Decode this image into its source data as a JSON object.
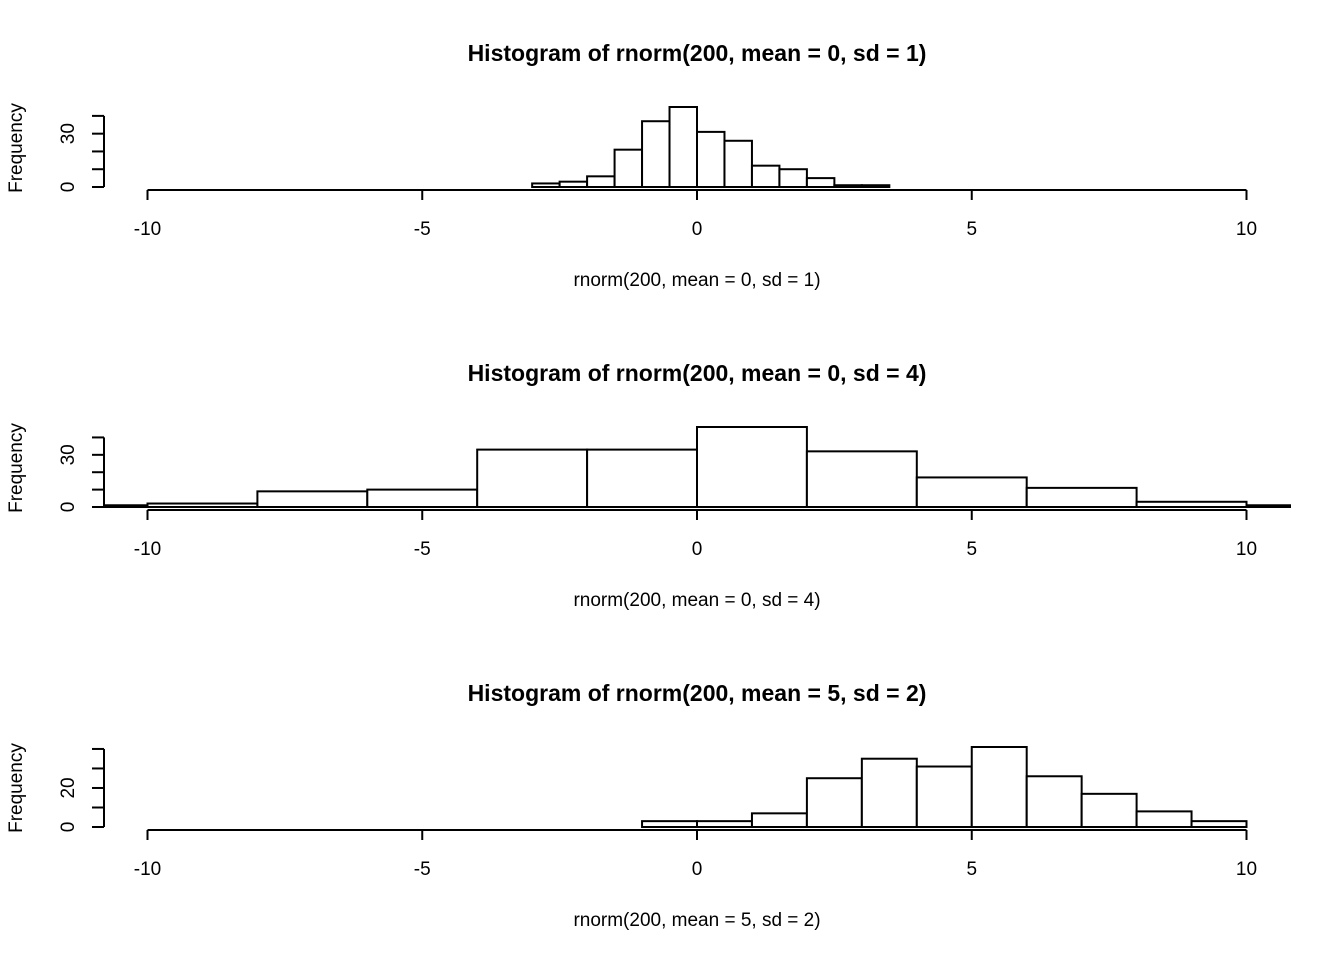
{
  "chart_data": [
    {
      "type": "bar",
      "title": "Histogram of rnorm(200, mean = 0, sd = 1)",
      "xlabel": "rnorm(200, mean = 0, sd = 1)",
      "ylabel": "Frequency",
      "xlim": [
        -10,
        10
      ],
      "ylim": [
        0,
        45
      ],
      "x_ticks": [
        "-10",
        "-5",
        "0",
        "5",
        "10"
      ],
      "y_ticks": [
        "0",
        "30"
      ],
      "y_minor_ticks": [
        0,
        10,
        20,
        30,
        40
      ],
      "bins": [
        {
          "from": -3.0,
          "to": -2.5,
          "count": 2
        },
        {
          "from": -2.5,
          "to": -2.0,
          "count": 3
        },
        {
          "from": -2.0,
          "to": -1.5,
          "count": 6
        },
        {
          "from": -1.5,
          "to": -1.0,
          "count": 21
        },
        {
          "from": -1.0,
          "to": -0.5,
          "count": 37
        },
        {
          "from": -0.5,
          "to": 0.0,
          "count": 45
        },
        {
          "from": 0.0,
          "to": 0.5,
          "count": 31
        },
        {
          "from": 0.5,
          "to": 1.0,
          "count": 26
        },
        {
          "from": 1.0,
          "to": 1.5,
          "count": 12
        },
        {
          "from": 1.5,
          "to": 2.0,
          "count": 10
        },
        {
          "from": 2.0,
          "to": 2.5,
          "count": 5
        },
        {
          "from": 2.5,
          "to": 3.0,
          "count": 1
        },
        {
          "from": 3.0,
          "to": 3.5,
          "count": 1
        }
      ]
    },
    {
      "type": "bar",
      "title": "Histogram of rnorm(200, mean = 0, sd = 4)",
      "xlabel": "rnorm(200, mean = 0, sd = 4)",
      "ylabel": "Frequency",
      "xlim": [
        -10,
        10
      ],
      "ylim": [
        0,
        46
      ],
      "x_ticks": [
        "-10",
        "-5",
        "0",
        "5",
        "10"
      ],
      "y_ticks": [
        "0",
        "30"
      ],
      "y_minor_ticks": [
        0,
        10,
        20,
        30,
        40
      ],
      "bins": [
        {
          "from": -12,
          "to": -10,
          "count": 1
        },
        {
          "from": -10,
          "to": -8,
          "count": 2
        },
        {
          "from": -8,
          "to": -6,
          "count": 9
        },
        {
          "from": -6,
          "to": -4,
          "count": 10
        },
        {
          "from": -4,
          "to": -2,
          "count": 33
        },
        {
          "from": -2,
          "to": 0,
          "count": 33
        },
        {
          "from": 0,
          "to": 2,
          "count": 46
        },
        {
          "from": 2,
          "to": 4,
          "count": 32
        },
        {
          "from": 4,
          "to": 6,
          "count": 17
        },
        {
          "from": 6,
          "to": 8,
          "count": 11
        },
        {
          "from": 8,
          "to": 10,
          "count": 3
        },
        {
          "from": 10,
          "to": 12,
          "count": 1
        }
      ]
    },
    {
      "type": "bar",
      "title": "Histogram of rnorm(200, mean = 5, sd = 2)",
      "xlabel": "rnorm(200, mean = 5, sd = 2)",
      "ylabel": "Frequency",
      "xlim": [
        -10,
        10
      ],
      "ylim": [
        0,
        41
      ],
      "x_ticks": [
        "-10",
        "-5",
        "0",
        "5",
        "10"
      ],
      "y_ticks": [
        "0",
        "20"
      ],
      "y_minor_ticks": [
        0,
        10,
        20,
        30,
        40
      ],
      "bins": [
        {
          "from": -1,
          "to": 0,
          "count": 3
        },
        {
          "from": 0,
          "to": 1,
          "count": 3
        },
        {
          "from": 1,
          "to": 2,
          "count": 7
        },
        {
          "from": 2,
          "to": 3,
          "count": 25
        },
        {
          "from": 3,
          "to": 4,
          "count": 35
        },
        {
          "from": 4,
          "to": 5,
          "count": 31
        },
        {
          "from": 5,
          "to": 6,
          "count": 41
        },
        {
          "from": 6,
          "to": 7,
          "count": 26
        },
        {
          "from": 7,
          "to": 8,
          "count": 17
        },
        {
          "from": 8,
          "to": 9,
          "count": 8
        },
        {
          "from": 9,
          "to": 10,
          "count": 3
        }
      ]
    }
  ]
}
